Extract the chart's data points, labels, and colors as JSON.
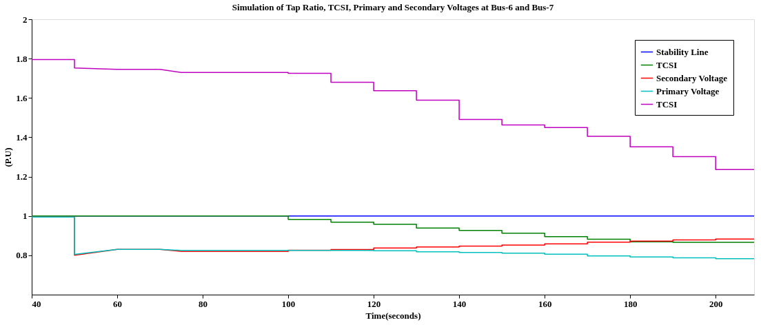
{
  "chart_data": {
    "type": "line",
    "title": "Simulation of Tap Ratio, TCSI, Primary and Secondary Voltages at Bus-6 and Bus-7",
    "xlabel": "Time(seconds)",
    "ylabel": "(P.U)",
    "xlim": [
      40,
      209
    ],
    "xticks": [
      40,
      60,
      80,
      100,
      120,
      140,
      160,
      180,
      200
    ],
    "ylim": [
      0.6,
      2
    ],
    "yticks": [
      0.8,
      1,
      1.2,
      1.4,
      1.6,
      1.8,
      2
    ],
    "grid": false,
    "legend": "top right",
    "marker": "none",
    "line_style": "solid",
    "series": [
      {
        "name": "Stability Line",
        "color": "#0000ff",
        "x": [
          40,
          209
        ],
        "values": [
          1,
          1
        ]
      },
      {
        "name": "TCSI",
        "color": "#008000",
        "x": [
          40,
          100,
          100,
          110,
          110,
          120,
          120,
          130,
          130,
          140,
          140,
          150,
          150,
          160,
          160,
          170,
          170,
          180,
          180,
          190,
          190,
          209
        ],
        "values": [
          1,
          1,
          0.982,
          0.982,
          0.968,
          0.968,
          0.958,
          0.958,
          0.939,
          0.939,
          0.926,
          0.926,
          0.912,
          0.912,
          0.895,
          0.895,
          0.882,
          0.882,
          0.869,
          0.869,
          0.866,
          0.866
        ]
      },
      {
        "name": "Secondary Voltage",
        "color": "#ff0000",
        "x": [
          40,
          50,
          50,
          60,
          70,
          75,
          100,
          100,
          110,
          110,
          120,
          120,
          130,
          130,
          140,
          140,
          150,
          150,
          160,
          160,
          170,
          170,
          180,
          180,
          190,
          190,
          200,
          200,
          209
        ],
        "values": [
          0.995,
          0.995,
          0.8,
          0.83,
          0.83,
          0.82,
          0.82,
          0.826,
          0.826,
          0.829,
          0.829,
          0.837,
          0.837,
          0.842,
          0.842,
          0.847,
          0.847,
          0.852,
          0.852,
          0.858,
          0.858,
          0.867,
          0.867,
          0.872,
          0.872,
          0.878,
          0.878,
          0.883,
          0.883
        ]
      },
      {
        "name": "Primary Voltage",
        "color": "#00bfbf",
        "x": [
          40,
          50,
          50,
          60,
          70,
          75,
          120,
          120,
          130,
          130,
          140,
          140,
          150,
          150,
          160,
          160,
          170,
          170,
          180,
          180,
          190,
          190,
          200,
          200,
          209
        ],
        "values": [
          0.995,
          0.995,
          0.805,
          0.83,
          0.83,
          0.825,
          0.825,
          0.823,
          0.823,
          0.818,
          0.818,
          0.814,
          0.814,
          0.811,
          0.811,
          0.806,
          0.806,
          0.797,
          0.797,
          0.792,
          0.792,
          0.787,
          0.787,
          0.783,
          0.783
        ]
      },
      {
        "name": "TCSI",
        "color": "#bf00bf",
        "x": [
          40,
          50,
          50,
          60,
          70,
          75,
          100,
          100,
          110,
          110,
          120,
          120,
          130,
          130,
          140,
          140,
          150,
          150,
          160,
          160,
          170,
          170,
          180,
          180,
          190,
          190,
          200,
          200,
          209
        ],
        "values": [
          1.795,
          1.795,
          1.752,
          1.745,
          1.745,
          1.73,
          1.73,
          1.725,
          1.725,
          1.68,
          1.68,
          1.637,
          1.637,
          1.589,
          1.589,
          1.491,
          1.491,
          1.463,
          1.463,
          1.45,
          1.45,
          1.405,
          1.405,
          1.352,
          1.352,
          1.302,
          1.302,
          1.236,
          1.236
        ]
      }
    ]
  }
}
